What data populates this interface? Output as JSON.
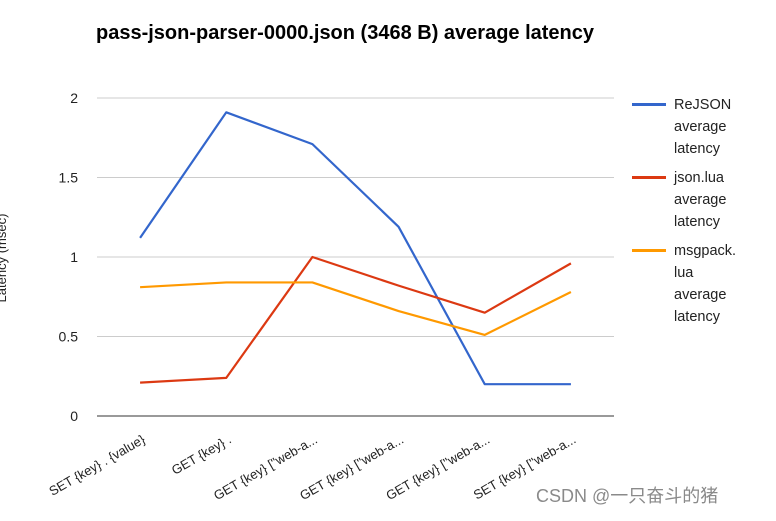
{
  "chart_data": {
    "type": "line",
    "title": "pass-json-parser-0000.json (3468 B) average latency",
    "ylabel": "Latency (msec)",
    "xlabel": "",
    "ylim": [
      0,
      2
    ],
    "yticks": [
      "0",
      "0.5",
      "1",
      "1.5",
      "2"
    ],
    "categories": [
      "SET {key} . {value}",
      "GET {key} .",
      "GET {key} [\"web-a...",
      "GET {key} [\"web-a...",
      "GET {key} [\"web-a...",
      "SET {key} [\"web-a..."
    ],
    "series": [
      {
        "name": "ReJSON\naverage\nlatency",
        "color": "#3366cc",
        "values": [
          1.12,
          1.91,
          1.71,
          1.19,
          0.2,
          0.2
        ]
      },
      {
        "name": "json.lua\naverage\nlatency",
        "color": "#dc3912",
        "values": [
          0.21,
          0.24,
          1.0,
          0.82,
          0.65,
          0.96
        ]
      },
      {
        "name": "msgpack.\nlua\naverage\nlatency",
        "color": "#ff9900",
        "values": [
          0.81,
          0.84,
          0.84,
          0.66,
          0.51,
          0.78
        ]
      }
    ],
    "grid": true,
    "legend_position": "right"
  },
  "watermark": "CSDN @一只奋斗的猪"
}
